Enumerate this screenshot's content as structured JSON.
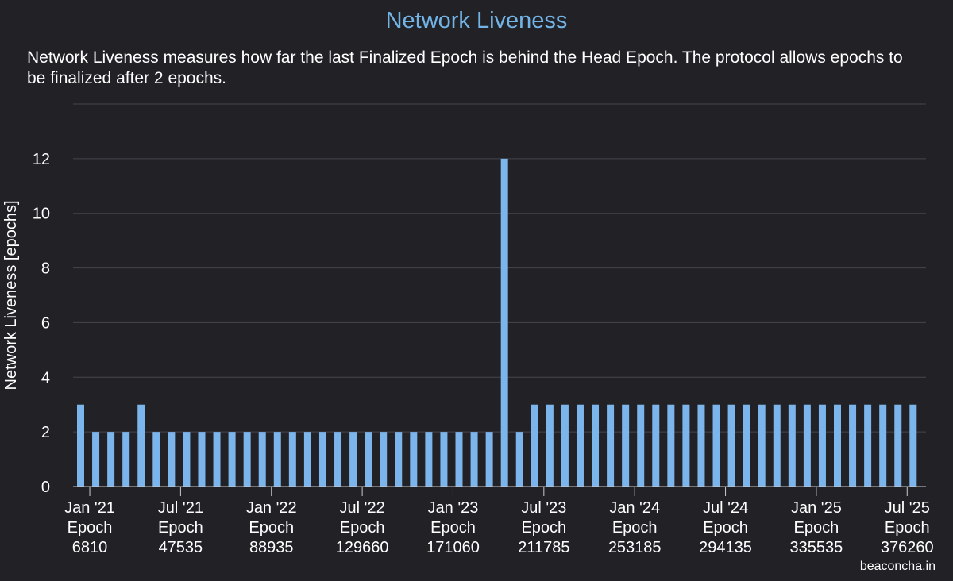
{
  "chart_data": {
    "type": "bar",
    "title": "Network Liveness",
    "subtitle": "Network Liveness measures how far the last Finalized Epoch is behind the Head Epoch. The protocol allows epochs to be finalized after 2 epochs.",
    "xlabel": "",
    "ylabel": "Network Liveness [epochs]",
    "ylim": [
      0,
      14
    ],
    "yticks": [
      0,
      2,
      4,
      6,
      8,
      10,
      12
    ],
    "grid": true,
    "values": [
      3,
      2,
      2,
      2,
      3,
      2,
      2,
      2,
      2,
      2,
      2,
      2,
      2,
      2,
      2,
      2,
      2,
      2,
      2,
      2,
      2,
      2,
      2,
      2,
      2,
      2,
      2,
      2,
      12,
      2,
      3,
      3,
      3,
      3,
      3,
      3,
      3,
      3,
      3,
      3,
      3,
      3,
      3,
      3,
      3,
      3,
      3,
      3,
      3,
      3,
      3,
      3,
      3,
      3,
      3,
      3
    ],
    "xticks": [
      {
        "index": 1,
        "date": "Jan '21",
        "epoch_label": "Epoch",
        "epoch": "6810"
      },
      {
        "index": 7,
        "date": "Jul '21",
        "epoch_label": "Epoch",
        "epoch": "47535"
      },
      {
        "index": 13,
        "date": "Jan '22",
        "epoch_label": "Epoch",
        "epoch": "88935"
      },
      {
        "index": 19,
        "date": "Jul '22",
        "epoch_label": "Epoch",
        "epoch": "129660"
      },
      {
        "index": 25,
        "date": "Jan '23",
        "epoch_label": "Epoch",
        "epoch": "171060"
      },
      {
        "index": 31,
        "date": "Jul '23",
        "epoch_label": "Epoch",
        "epoch": "211785"
      },
      {
        "index": 37,
        "date": "Jan '24",
        "epoch_label": "Epoch",
        "epoch": "253185"
      },
      {
        "index": 43,
        "date": "Jul '24",
        "epoch_label": "Epoch",
        "epoch": "294135"
      },
      {
        "index": 49,
        "date": "Jan '25",
        "epoch_label": "Epoch",
        "epoch": "335535"
      },
      {
        "index": 55,
        "date": "Jul '25",
        "epoch_label": "Epoch",
        "epoch": "376260"
      }
    ],
    "bar_color": "#7cb5ec"
  },
  "credit": "beaconcha.in"
}
